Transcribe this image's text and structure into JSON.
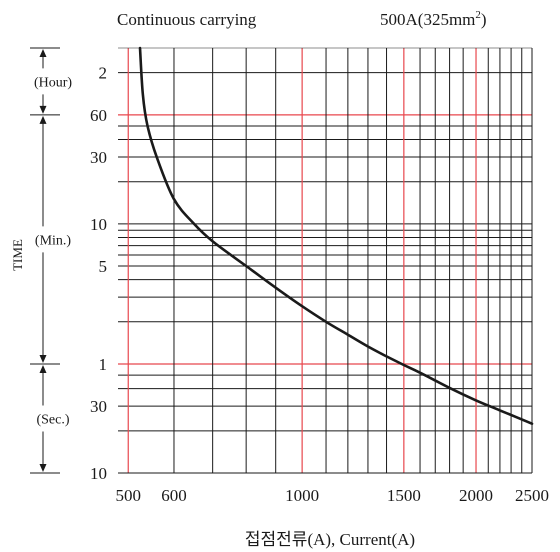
{
  "chart_data": {
    "type": "line",
    "title": "Continuous carrying",
    "rating": "500A(325mm",
    "rating_sup": "2",
    "rating_close": ")",
    "xlabel": "접점전류(A), Current(A)",
    "ylabel": "TIME",
    "x_scale": "log",
    "y_scale": "log",
    "xlim": [
      480,
      2500
    ],
    "ylim_seconds": [
      10,
      10800
    ],
    "x_ticks": [
      {
        "value": 500,
        "label": "500"
      },
      {
        "value": 600,
        "label": "600"
      },
      {
        "value": 1000,
        "label": "1000"
      },
      {
        "value": 1500,
        "label": "1500"
      },
      {
        "value": 2000,
        "label": "2000"
      },
      {
        "value": 2500,
        "label": "2500"
      }
    ],
    "y_ticks": [
      {
        "seconds": 7200,
        "label": "2"
      },
      {
        "seconds": 3600,
        "label": "60"
      },
      {
        "seconds": 1800,
        "label": "30"
      },
      {
        "seconds": 600,
        "label": "10"
      },
      {
        "seconds": 300,
        "label": "5"
      },
      {
        "seconds": 60,
        "label": "1"
      },
      {
        "seconds": 30,
        "label": "30"
      },
      {
        "seconds": 10,
        "label": "10"
      }
    ],
    "unit_ranges": [
      {
        "label": "(Hour)",
        "from_seconds": 3600,
        "to_seconds": 10800
      },
      {
        "label": "(Min.)",
        "from_seconds": 60,
        "to_seconds": 3600
      },
      {
        "label": "(Sec.)",
        "from_seconds": 10,
        "to_seconds": 60
      }
    ],
    "grid": true,
    "series": [
      {
        "x": [
          524,
          530,
          540,
          560,
          600,
          650,
          700,
          800,
          900,
          1000,
          1100,
          1200,
          1300,
          1400,
          1500,
          1600,
          1800,
          2000,
          2200,
          2500
        ],
        "y_seconds": [
          10800,
          5000,
          3000,
          1800,
          900,
          600,
          450,
          300,
          210,
          155,
          120,
          97,
          80,
          68,
          59,
          52,
          40.5,
          33,
          28,
          22.5
        ],
        "color": "#1a1a1a"
      }
    ]
  }
}
